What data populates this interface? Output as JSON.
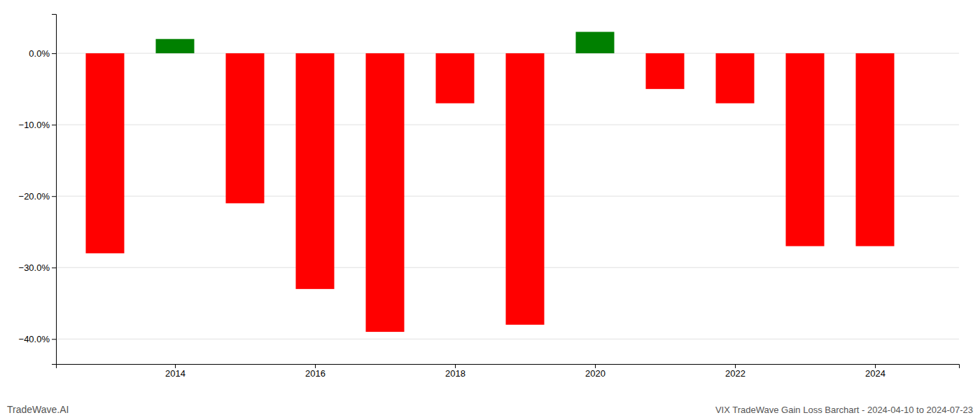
{
  "chart_data": {
    "type": "bar",
    "title": "VIX TradeWave Gain Loss Barchart - 2024-04-10 to 2024-07-23",
    "annotations": [
      "TradeWave.AI"
    ],
    "x": [
      2013,
      2014,
      2015,
      2016,
      2017,
      2018,
      2019,
      2020,
      2021,
      2022,
      2023,
      2024
    ],
    "values": [
      -0.28,
      0.02,
      -0.21,
      -0.33,
      -0.39,
      -0.07,
      -0.38,
      0.03,
      -0.05,
      -0.07,
      -0.27,
      -0.27
    ],
    "colors": [
      "#ff0000",
      "#008000",
      "#ff0000",
      "#ff0000",
      "#ff0000",
      "#ff0000",
      "#ff0000",
      "#008000",
      "#ff0000",
      "#ff0000",
      "#ff0000",
      "#ff0000"
    ],
    "xlim": [
      2012.3,
      2025.2
    ],
    "xticks": [
      2014,
      2016,
      2018,
      2020,
      2022,
      2024
    ],
    "ylim": [
      -0.435,
      0.055
    ],
    "yticks": [
      {
        "value": 0.0,
        "label": "0.0%"
      },
      {
        "value": -0.1,
        "label": "−10.0%"
      },
      {
        "value": -0.2,
        "label": "−20.0%"
      },
      {
        "value": -0.3,
        "label": "−30.0%"
      },
      {
        "value": -0.4,
        "label": "−40.0%"
      }
    ],
    "grid": true
  }
}
